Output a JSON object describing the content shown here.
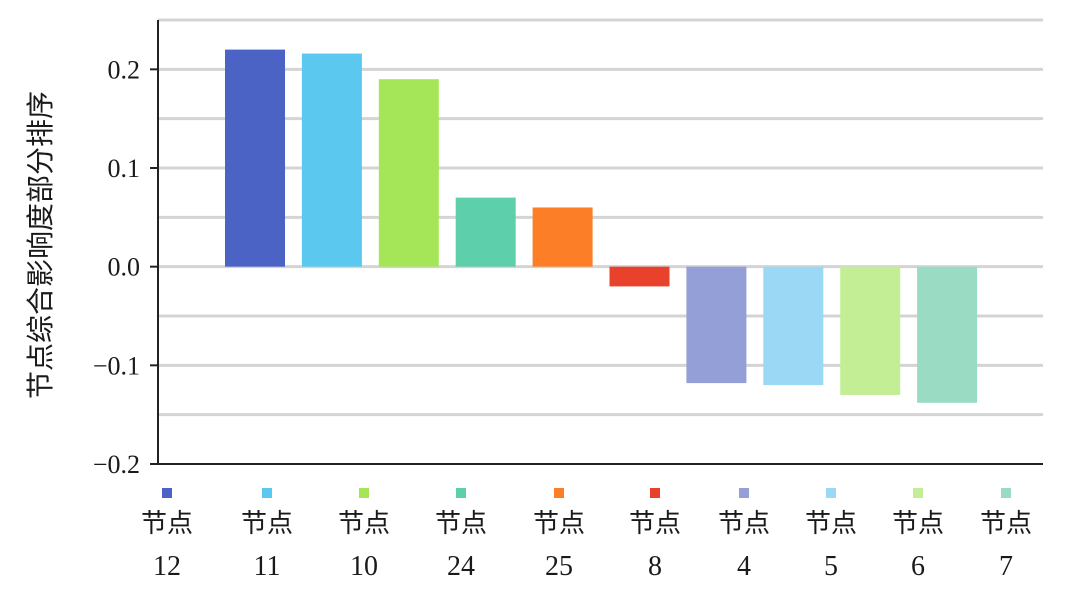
{
  "chart_data": {
    "type": "bar",
    "ylabel": "节点综合影响度部分排序",
    "ylim": [
      -0.2,
      0.25
    ],
    "yticks": [
      {
        "value": 0.2,
        "label": "0.2"
      },
      {
        "value": 0.1,
        "label": "0.1"
      },
      {
        "value": 0.0,
        "label": "0.0"
      },
      {
        "value": -0.1,
        "label": "−0.1"
      },
      {
        "value": -0.2,
        "label": "−0.2"
      }
    ],
    "gridlines": [
      0.25,
      0.2,
      0.15,
      0.1,
      0.05,
      0.0,
      -0.05,
      -0.1,
      -0.15
    ],
    "grid": true,
    "legend": "bottom",
    "categories": [
      {
        "prefix": "节点",
        "id": "12",
        "value": 0.22,
        "color": "#4c63c6"
      },
      {
        "prefix": "节点",
        "id": "11",
        "value": 0.216,
        "color": "#5bc8f0"
      },
      {
        "prefix": "节点",
        "id": "10",
        "value": 0.19,
        "color": "#a4e658"
      },
      {
        "prefix": "节点",
        "id": "24",
        "value": 0.07,
        "color": "#5dcfaa"
      },
      {
        "prefix": "节点",
        "id": "25",
        "value": 0.06,
        "color": "#fc7f27"
      },
      {
        "prefix": "节点",
        "id": "8",
        "value": -0.02,
        "color": "#e8412c"
      },
      {
        "prefix": "节点",
        "id": "4",
        "value": -0.118,
        "color": "#949fd8"
      },
      {
        "prefix": "节点",
        "id": "5",
        "value": -0.12,
        "color": "#9ad8f5"
      },
      {
        "prefix": "节点",
        "id": "6",
        "value": -0.13,
        "color": "#c4ee96"
      },
      {
        "prefix": "节点",
        "id": "7",
        "value": -0.138,
        "color": "#99dcc3"
      }
    ]
  }
}
